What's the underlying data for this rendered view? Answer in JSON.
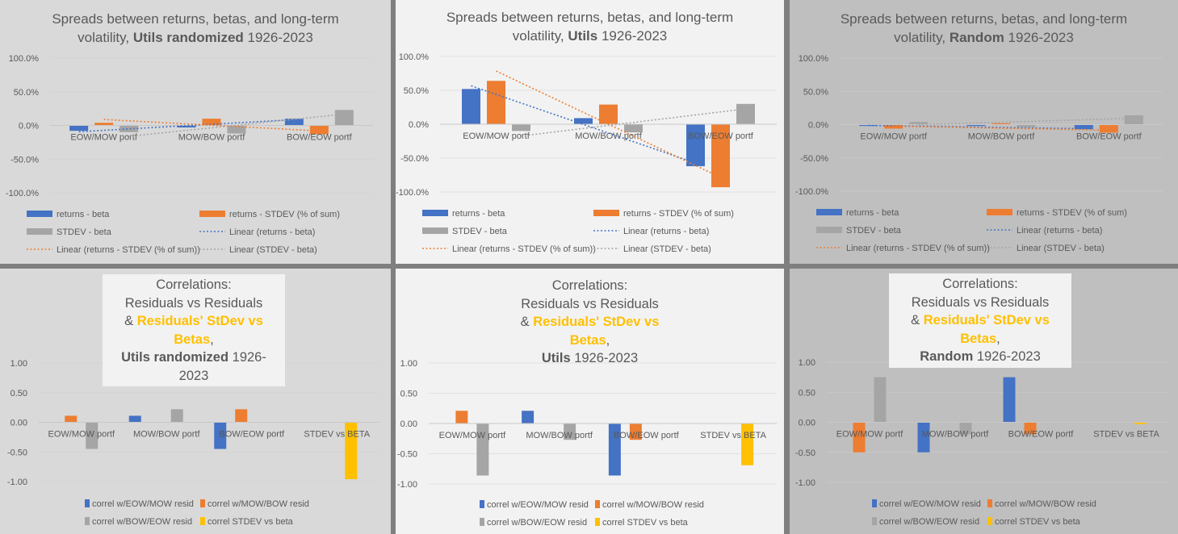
{
  "colors": {
    "blue": "#4472c4",
    "orange": "#ed7d31",
    "gray": "#a5a5a5",
    "gold": "#ffc000",
    "panel_light": "#f2f2f2",
    "panel_dim": "#d9d9d9",
    "panel_dark": "#bfbfbf",
    "frame": "#7f7f7f"
  },
  "top_titles": [
    {
      "l1": "Spreads between returns, betas, and long-term",
      "l2a": "volatility, ",
      "bold": "Utils randomized",
      "year": " 1926-2023"
    },
    {
      "l1": "Spreads between returns, betas, and long-term",
      "l2a": "volatility, ",
      "bold": "Utils",
      "year": " 1926-2023"
    },
    {
      "l1": "Spreads between returns, betas, and long-term",
      "l2a": "volatility, ",
      "bold": "Random",
      "year": " 1926-2023"
    }
  ],
  "bottom_titles": [
    {
      "l1": "Correlations:",
      "l2": "Residuals vs Residuals",
      "l3a": "& ",
      "hl": "Residuals' StDev vs Betas",
      "l3b": ",",
      "bold": "Utils randomized",
      "year": " 1926-2023"
    },
    {
      "l1": "Correlations:",
      "l2": "Residuals vs Residuals",
      "l3a": "& ",
      "hl": "Residuals' StDev vs Betas",
      "l3b": ",",
      "bold": "Utils",
      "year": " 1926-2023"
    },
    {
      "l1": "Correlations:",
      "l2": "Residuals vs Residuals",
      "l3a": "& ",
      "hl": "Residuals' StDev vs Betas",
      "l3b": ",",
      "bold": "Random",
      "year": " 1926-2023"
    }
  ],
  "chart_data": [
    {
      "type": "bar",
      "name": "top-left",
      "categories": [
        "EOW/MOW portf",
        "MOW/BOW portf",
        "BOW/EOW portf"
      ],
      "ylim": [
        -100,
        100
      ],
      "yticks": [
        100,
        50,
        0,
        -50,
        -100
      ],
      "ytick_labels": [
        "100.0%",
        "50.0%",
        "0.0%",
        "-50.0%",
        "-100.0%"
      ],
      "series": [
        {
          "name": "returns - beta",
          "values": [
            -8,
            -3,
            10
          ]
        },
        {
          "name": "returns - STDEV (% of sum)",
          "values": [
            4,
            10,
            -13
          ]
        },
        {
          "name": "STDEV - beta",
          "values": [
            -10,
            -12,
            23
          ]
        }
      ],
      "trendlines": [
        {
          "name": "Linear (returns - beta)",
          "series": 0
        },
        {
          "name": "Linear (returns - STDEV (% of sum))",
          "series": 1
        },
        {
          "name": "Linear (STDEV - beta)",
          "series": 2
        }
      ],
      "legend": [
        "returns - beta",
        "returns - STDEV (% of sum)",
        "STDEV - beta",
        "Linear (returns - beta)",
        "Linear (returns - STDEV (% of sum))",
        "Linear (STDEV - beta)"
      ]
    },
    {
      "type": "bar",
      "name": "top-middle",
      "categories": [
        "EOW/MOW portf",
        "MOW/BOW portf",
        "BOW/EOW portf"
      ],
      "ylim": [
        -100,
        100
      ],
      "yticks": [
        100,
        50,
        0,
        -50,
        -100
      ],
      "ytick_labels": [
        "100.0%",
        "50.0%",
        "0.0%",
        "-50.0%",
        "-100.0%"
      ],
      "series": [
        {
          "name": "returns - beta",
          "values": [
            52,
            9,
            -62
          ]
        },
        {
          "name": "returns - STDEV (% of sum)",
          "values": [
            64,
            29,
            -93
          ]
        },
        {
          "name": "STDEV - beta",
          "values": [
            -10,
            -12,
            30
          ]
        }
      ],
      "trendlines": [
        {
          "name": "Linear (returns - beta)",
          "series": 0
        },
        {
          "name": "Linear (returns - STDEV (% of sum))",
          "series": 1
        },
        {
          "name": "Linear (STDEV - beta)",
          "series": 2
        }
      ],
      "legend": [
        "returns - beta",
        "returns - STDEV (% of sum)",
        "STDEV - beta",
        "Linear (returns - beta)",
        "Linear (returns - STDEV (% of sum))",
        "Linear (STDEV - beta)"
      ]
    },
    {
      "type": "bar",
      "name": "top-right",
      "categories": [
        "EOW/MOW portf",
        "MOW/BOW portf",
        "BOW/EOW portf"
      ],
      "ylim": [
        -100,
        100
      ],
      "yticks": [
        100,
        50,
        0,
        -50,
        -100
      ],
      "ytick_labels": [
        "100.0%",
        "50.0%",
        "0.0%",
        "-50.0%",
        "-100.0%"
      ],
      "series": [
        {
          "name": "returns - beta",
          "values": [
            -2,
            -2,
            -7
          ]
        },
        {
          "name": "returns - STDEV (% of sum)",
          "values": [
            -6,
            2,
            -12
          ]
        },
        {
          "name": "STDEV - beta",
          "values": [
            4,
            -4,
            14
          ]
        }
      ],
      "trendlines": [
        {
          "name": "Linear (returns - beta)",
          "series": 0
        },
        {
          "name": "Linear (returns - STDEV (% of sum))",
          "series": 1
        },
        {
          "name": "Linear (STDEV - beta)",
          "series": 2
        }
      ],
      "legend": [
        "returns - beta",
        "returns - STDEV (% of sum)",
        "STDEV - beta",
        "Linear (returns - beta)",
        "Linear (returns - STDEV (% of sum))",
        "Linear (STDEV - beta)"
      ]
    },
    {
      "type": "bar",
      "name": "bottom-left",
      "categories": [
        "EOW/MOW portf",
        "MOW/BOW portf",
        "BOW/EOW portf",
        "STDEV vs BETA"
      ],
      "ylim": [
        -1,
        1
      ],
      "yticks": [
        1,
        0.5,
        0,
        -0.5,
        -1
      ],
      "ytick_labels": [
        "1.00",
        "0.50",
        "0.00",
        "-0.50",
        "-1.00"
      ],
      "series": [
        {
          "name": "correl w/EOW/MOW resid",
          "values": [
            null,
            0.11,
            -0.45,
            null
          ]
        },
        {
          "name": "correl w/MOW/BOW resid",
          "values": [
            0.11,
            null,
            0.22,
            null
          ]
        },
        {
          "name": "correl w/BOW/EOW resid",
          "values": [
            -0.45,
            0.22,
            null,
            null
          ]
        },
        {
          "name": "correl STDEV vs beta",
          "values": [
            null,
            null,
            null,
            -0.96
          ]
        }
      ],
      "legend": [
        "correl w/EOW/MOW resid",
        "correl w/MOW/BOW resid",
        "correl w/BOW/EOW resid",
        "correl STDEV vs beta"
      ]
    },
    {
      "type": "bar",
      "name": "bottom-middle",
      "categories": [
        "EOW/MOW portf",
        "MOW/BOW portf",
        "BOW/EOW portf",
        "STDEV vs BETA"
      ],
      "ylim": [
        -1,
        1
      ],
      "yticks": [
        1,
        0.5,
        0,
        -0.5,
        -1
      ],
      "ytick_labels": [
        "1.00",
        "0.50",
        "0.00",
        "-0.50",
        "-1.00"
      ],
      "series": [
        {
          "name": "correl w/EOW/MOW resid",
          "values": [
            null,
            0.21,
            -0.86,
            null
          ]
        },
        {
          "name": "correl w/MOW/BOW resid",
          "values": [
            0.21,
            null,
            -0.27,
            null
          ]
        },
        {
          "name": "correl w/BOW/EOW resid",
          "values": [
            -0.86,
            -0.27,
            null,
            null
          ]
        },
        {
          "name": "correl STDEV vs beta",
          "values": [
            null,
            null,
            null,
            -0.69
          ]
        }
      ],
      "legend": [
        "correl w/EOW/MOW resid",
        "correl w/MOW/BOW resid",
        "correl w/BOW/EOW resid",
        "correl STDEV vs beta"
      ]
    },
    {
      "type": "bar",
      "name": "bottom-right",
      "categories": [
        "EOW/MOW portf",
        "MOW/BOW portf",
        "BOW/EOW portf",
        "STDEV vs BETA"
      ],
      "ylim": [
        -1,
        1
      ],
      "yticks": [
        1,
        0.5,
        0,
        -0.5,
        -1
      ],
      "ytick_labels": [
        "1.00",
        "0.50",
        "0.00",
        "-0.50",
        "-1.00"
      ],
      "series": [
        {
          "name": "correl w/EOW/MOW resid",
          "values": [
            null,
            -0.5,
            0.75,
            null
          ]
        },
        {
          "name": "correl w/MOW/BOW resid",
          "values": [
            -0.5,
            null,
            -0.2,
            null
          ]
        },
        {
          "name": "correl w/BOW/EOW resid",
          "values": [
            0.75,
            -0.2,
            null,
            null
          ]
        },
        {
          "name": "correl STDEV vs beta",
          "values": [
            null,
            null,
            null,
            -0.03
          ]
        }
      ],
      "legend": [
        "correl w/EOW/MOW resid",
        "correl w/MOW/BOW resid",
        "correl w/BOW/EOW resid",
        "correl STDEV vs beta"
      ]
    }
  ]
}
